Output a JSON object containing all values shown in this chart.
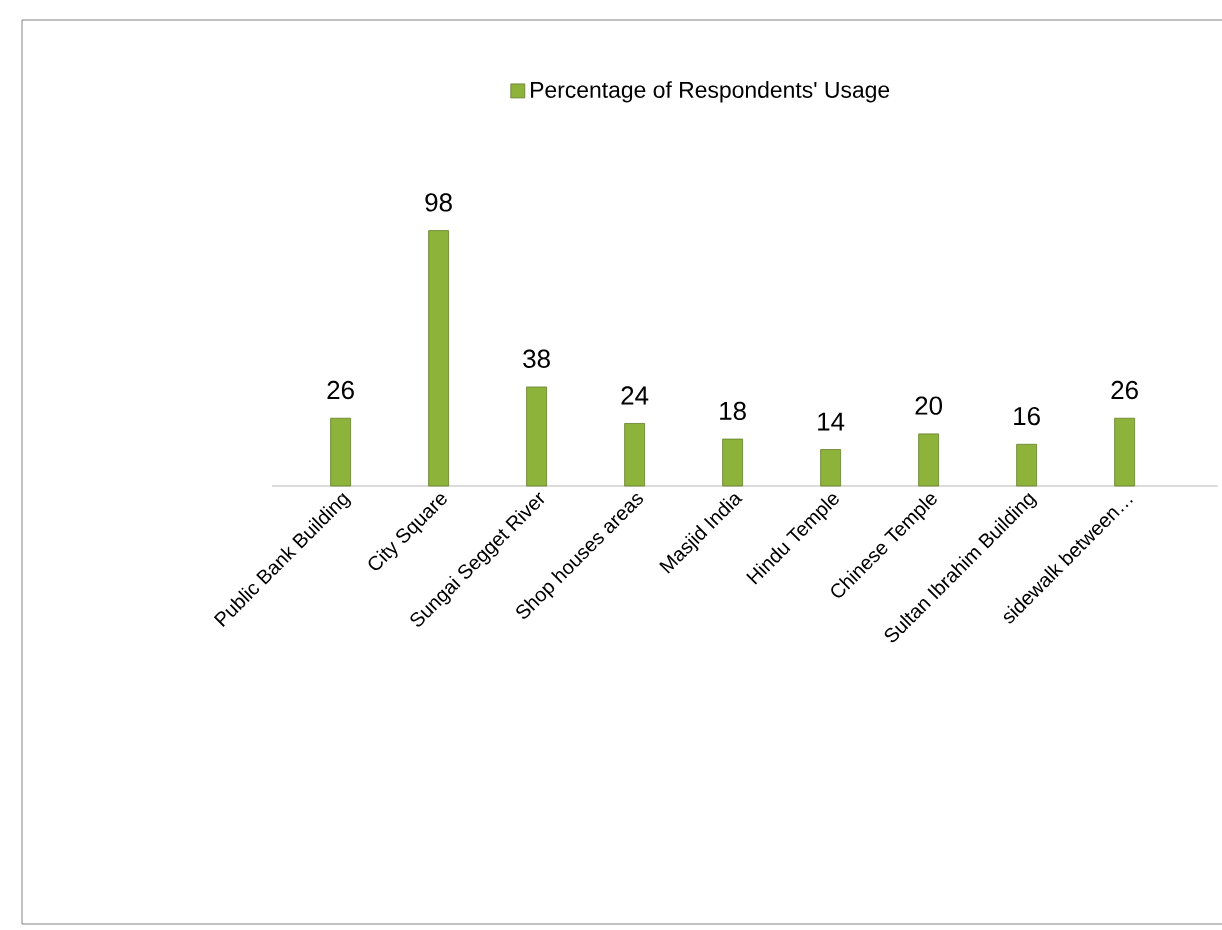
{
  "chart_data": {
    "type": "bar",
    "categories": [
      "Public Bank Building",
      "City Square",
      "Sungai Segget River",
      "Shop houses areas",
      "Masjid India",
      "Hindu Temple",
      "Chinese Temple",
      "Sultan Ibrahim Building",
      "sidewalk between…"
    ],
    "series": [
      {
        "name": "Percentage of Respondents' Usage",
        "color": "#8db33a",
        "values": [
          26,
          98,
          38,
          24,
          18,
          14,
          20,
          16,
          26
        ]
      }
    ],
    "data_labels": true,
    "legend": "top"
  }
}
